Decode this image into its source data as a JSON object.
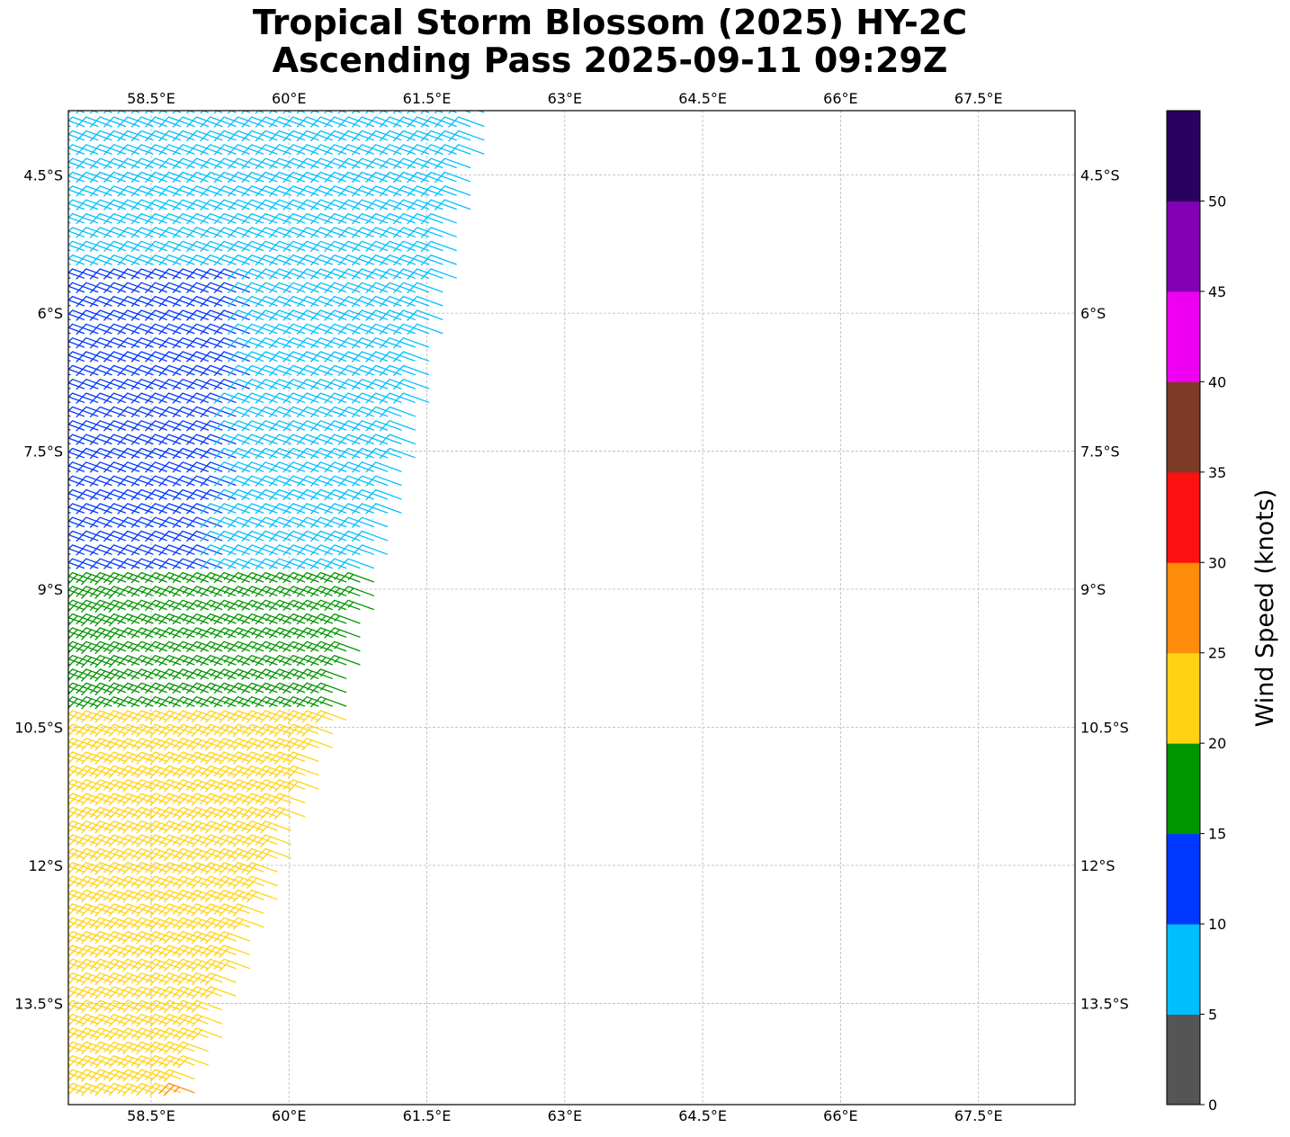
{
  "chart_data": {
    "type": "scatter",
    "subtype": "wind-barb-map",
    "title_line1": "Tropical Storm Blossom (2025) HY-2C",
    "title_line2": "Ascending Pass 2025-09-11 09:29Z",
    "xlim": [
      57.6,
      68.55
    ],
    "ylim": [
      -14.6,
      -3.8
    ],
    "x_ticks": [
      {
        "value": 58.5,
        "label": "58.5°E"
      },
      {
        "value": 60.0,
        "label": "60°E"
      },
      {
        "value": 61.5,
        "label": "61.5°E"
      },
      {
        "value": 63.0,
        "label": "63°E"
      },
      {
        "value": 64.5,
        "label": "64.5°E"
      },
      {
        "value": 66.0,
        "label": "66°E"
      },
      {
        "value": 67.5,
        "label": "67.5°E"
      }
    ],
    "y_ticks": [
      {
        "value": -4.5,
        "label": "4.5°S"
      },
      {
        "value": -6.0,
        "label": "6°S"
      },
      {
        "value": -7.5,
        "label": "7.5°S"
      },
      {
        "value": -9.0,
        "label": "9°S"
      },
      {
        "value": -10.5,
        "label": "10.5°S"
      },
      {
        "value": -12.0,
        "label": "12°S"
      },
      {
        "value": -13.5,
        "label": "13.5°S"
      }
    ],
    "grid": true,
    "swath_edge": [
      [
        62.25,
        -3.8
      ],
      [
        61.4,
        -7.5
      ],
      [
        60.6,
        -10.5
      ],
      [
        59.0,
        -14.6
      ]
    ],
    "barb_spacing_deg": 0.15,
    "barb_direction_deg": 290,
    "speed_bands": [
      {
        "lat_min": -5.5,
        "lat_max": -3.8,
        "speed_west": 10,
        "speed_east": 8
      },
      {
        "lat_min": -8.8,
        "lat_max": -5.5,
        "speed_west": 12,
        "speed_east": 8
      },
      {
        "lat_min": -10.3,
        "lat_max": -8.8,
        "speed_west": 18,
        "speed_east": 16
      },
      {
        "lat_min": -14.6,
        "lat_max": -10.3,
        "speed_west": 23,
        "speed_east": 21
      }
    ],
    "point_samples": [
      {
        "lon": 58.9,
        "lat": -14.45,
        "speed": 27
      }
    ],
    "colorbar": {
      "label": "Wind Speed (knots)",
      "min": 0,
      "max": 55,
      "tick_values": [
        0,
        5,
        10,
        15,
        20,
        25,
        30,
        35,
        40,
        45,
        50
      ],
      "tick_labels": [
        "0",
        "5",
        "10",
        "15",
        "20",
        "25",
        "30",
        "35",
        "40",
        "45",
        "50"
      ],
      "bins": [
        {
          "from": 0,
          "to": 5,
          "color": "#555555"
        },
        {
          "from": 5,
          "to": 10,
          "color": "#00bfff"
        },
        {
          "from": 10,
          "to": 15,
          "color": "#0038ff"
        },
        {
          "from": 15,
          "to": 20,
          "color": "#009600"
        },
        {
          "from": 20,
          "to": 25,
          "color": "#ffd313"
        },
        {
          "from": 25,
          "to": 30,
          "color": "#ff8c0a"
        },
        {
          "from": 30,
          "to": 35,
          "color": "#ff1010"
        },
        {
          "from": 35,
          "to": 40,
          "color": "#7d3a26"
        },
        {
          "from": 40,
          "to": 45,
          "color": "#f000f0"
        },
        {
          "from": 45,
          "to": 50,
          "color": "#8200b4"
        },
        {
          "from": 50,
          "to": 55,
          "color": "#2a0060"
        }
      ]
    }
  }
}
